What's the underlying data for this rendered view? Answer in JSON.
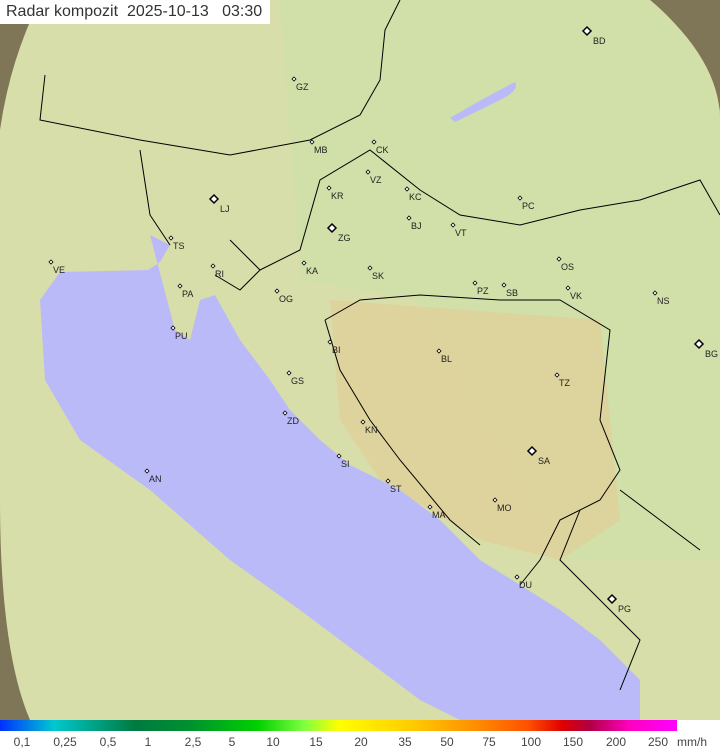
{
  "title": "Radar kompozit  2025-10-13   03:30",
  "legend": {
    "ticks": [
      "0,1",
      "0,25",
      "0,5",
      "1",
      "2,5",
      "5",
      "10",
      "15",
      "20",
      "35",
      "50",
      "75",
      "100",
      "150",
      "200",
      "250"
    ],
    "unit": "mm/h"
  },
  "cities": [
    "GZ",
    "BD",
    "MB",
    "CK",
    "VZ",
    "KR",
    "KC",
    "PC",
    "LJ",
    "BJ",
    "VT",
    "ZG",
    "TS",
    "VE",
    "OS",
    "KA",
    "SK",
    "RI",
    "PZ",
    "SB",
    "VK",
    "NS",
    "PA",
    "OG",
    "PU",
    "BG",
    "BI",
    "BL",
    "GS",
    "TZ",
    "ZD",
    "KN",
    "SA",
    "SI",
    "AN",
    "ST",
    "MA",
    "MO",
    "DU",
    "PG"
  ],
  "colors": {
    "sea": "#babaf8",
    "land": "#d8d8a0",
    "coverage": "#e6f0c0",
    "outside": "#807050"
  }
}
